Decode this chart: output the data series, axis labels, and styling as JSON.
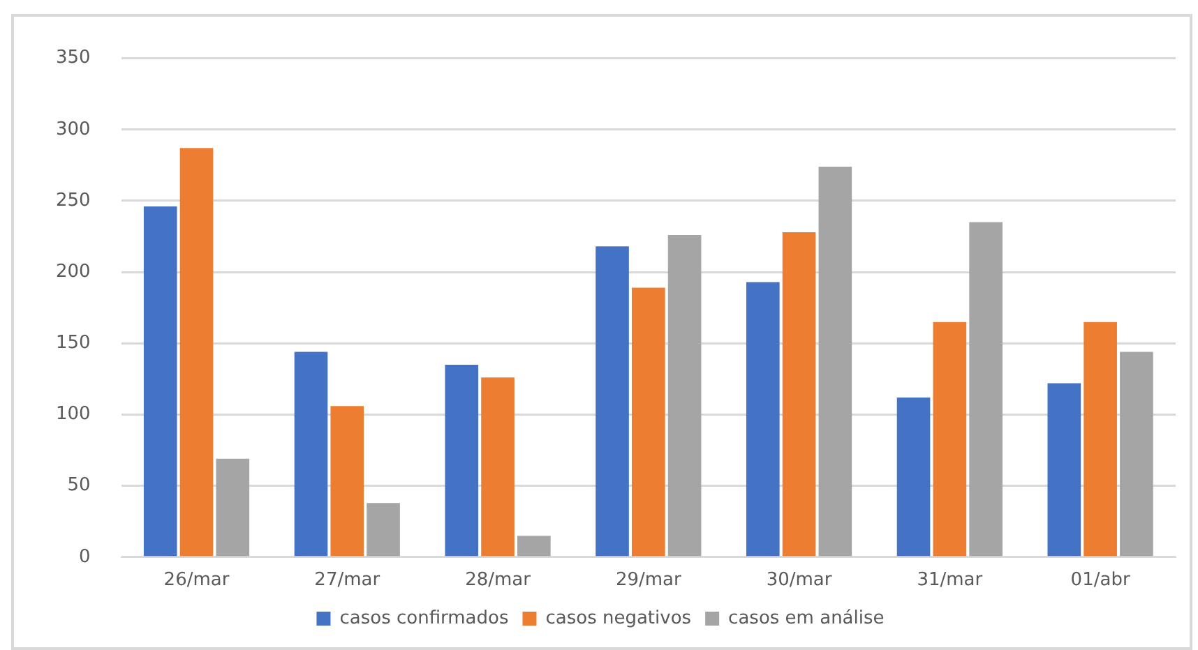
{
  "chart_data": {
    "type": "bar",
    "categories": [
      "26/mar",
      "27/mar",
      "28/mar",
      "29/mar",
      "30/mar",
      "31/mar",
      "01/abr"
    ],
    "series": [
      {
        "name": "casos confirmados",
        "color": "#4472c4",
        "values": [
          246,
          144,
          135,
          218,
          193,
          112,
          122
        ]
      },
      {
        "name": "casos negativos",
        "color": "#ed7d31",
        "values": [
          287,
          106,
          126,
          189,
          228,
          165,
          165
        ]
      },
      {
        "name": "casos em análise",
        "color": "#a5a5a5",
        "values": [
          69,
          38,
          15,
          226,
          274,
          235,
          144
        ]
      }
    ],
    "ylim": [
      0,
      350
    ],
    "yticks": [
      0,
      50,
      100,
      150,
      200,
      250,
      300,
      350
    ],
    "grid": "y",
    "legend": "bottom"
  }
}
